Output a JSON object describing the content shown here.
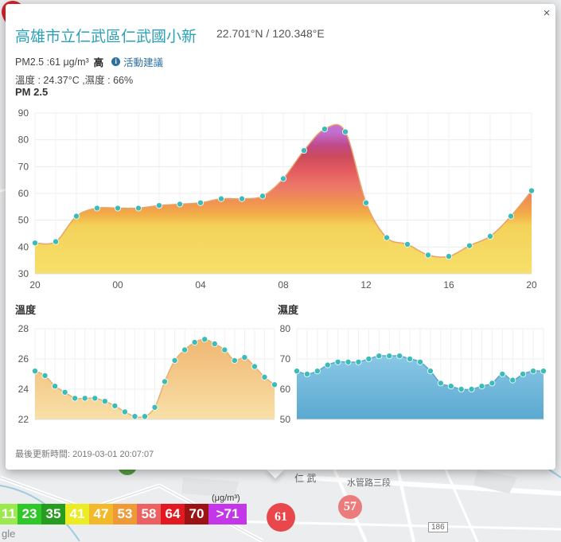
{
  "popup": {
    "title": "高雄市立仁武區仁武國小新",
    "coords": "22.701°N / 120.348°E",
    "pm25_reading": "PM2.5 :61 μg/m³",
    "level": "高",
    "advice_link": "活動建議",
    "weather": "溫度 : 24.37°C ,濕度 : 66%",
    "pm_chart_label": "PM 2.5",
    "temp_chart_label": "溫度",
    "humid_chart_label": "濕度",
    "updated_label": "最後更新時間:",
    "updated_time": "2019-03-01 20:07:07",
    "close_glyph": "×"
  },
  "map": {
    "legend": [
      {
        "label": "11",
        "color": "#9be84f"
      },
      {
        "label": "23",
        "color": "#2fc72a"
      },
      {
        "label": "35",
        "color": "#289c20"
      },
      {
        "label": "41",
        "color": "#ecec24"
      },
      {
        "label": "47",
        "color": "#f2b92c"
      },
      {
        "label": "53",
        "color": "#ee9a36"
      },
      {
        "label": "58",
        "color": "#ec6161"
      },
      {
        "label": "64",
        "color": "#e21920"
      },
      {
        "label": "70",
        "color": "#9a1414"
      },
      {
        "label": ">71",
        "color": "#c437e8"
      }
    ],
    "legend_unit": "(μg/m³)",
    "markers": [
      {
        "label": "61",
        "color": "#e8474c"
      },
      {
        "label": "57",
        "color": "#ec7c7c"
      }
    ],
    "street_label_1": "仁 武",
    "street_label_2": "水管路三段",
    "road_badge": "186",
    "attribution_fragment": "gle"
  },
  "chart_data": [
    {
      "type": "area",
      "title": "PM 2.5",
      "x_ticks": [
        "20",
        "00",
        "04",
        "08",
        "12",
        "16",
        "20"
      ],
      "ylim": [
        30,
        90
      ],
      "y_ticks": [
        30,
        40,
        50,
        60,
        70,
        80,
        90
      ],
      "grid": true,
      "values": [
        41.5,
        42,
        51.5,
        54.5,
        54.5,
        54.5,
        55.5,
        56,
        56.5,
        58,
        58,
        59,
        65.5,
        76,
        84,
        83,
        56.5,
        43.5,
        41,
        37,
        36.5,
        40.5,
        44,
        51.5,
        61
      ]
    },
    {
      "type": "area",
      "title": "溫度",
      "ylim": [
        22,
        28
      ],
      "y_ticks": [
        22,
        24,
        26,
        28
      ],
      "grid": true,
      "color": "#f2c47a",
      "values": [
        25.2,
        24.9,
        24.2,
        23.8,
        23.4,
        23.4,
        23.4,
        23.2,
        22.9,
        22.5,
        22.2,
        22.2,
        22.8,
        24.5,
        25.9,
        26.6,
        27.1,
        27.3,
        27.0,
        26.6,
        25.9,
        26.1,
        25.5,
        24.8,
        24.3
      ]
    },
    {
      "type": "area",
      "title": "濕度",
      "ylim": [
        50,
        80
      ],
      "y_ticks": [
        50,
        60,
        70,
        80
      ],
      "grid": true,
      "color": "#63b2d6",
      "values": [
        66,
        65,
        66,
        68,
        69,
        69,
        69,
        70,
        71,
        71,
        71,
        70,
        69,
        66,
        62,
        61,
        60,
        60,
        61,
        62,
        65,
        63,
        65,
        66,
        66
      ]
    }
  ]
}
